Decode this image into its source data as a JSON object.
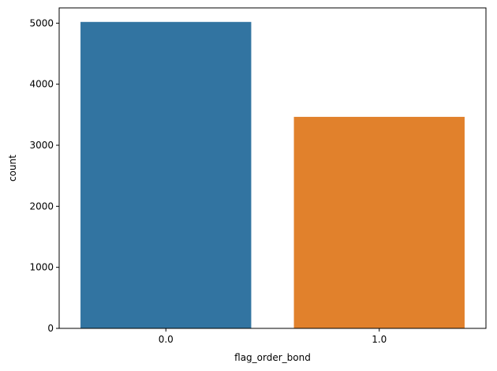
{
  "chart_data": {
    "type": "bar",
    "categories": [
      "0.0",
      "1.0"
    ],
    "values": [
      5020,
      3465
    ],
    "colors": [
      "#3274a1",
      "#e1812c"
    ],
    "xlabel": "flag_order_bond",
    "ylabel": "count",
    "ylim": [
      0,
      5250
    ],
    "yticks": [
      0,
      1000,
      2000,
      3000,
      4000,
      5000
    ],
    "ytick_labels": [
      "0",
      "1000",
      "2000",
      "3000",
      "4000",
      "5000"
    ],
    "grid": false,
    "legend": "none"
  }
}
